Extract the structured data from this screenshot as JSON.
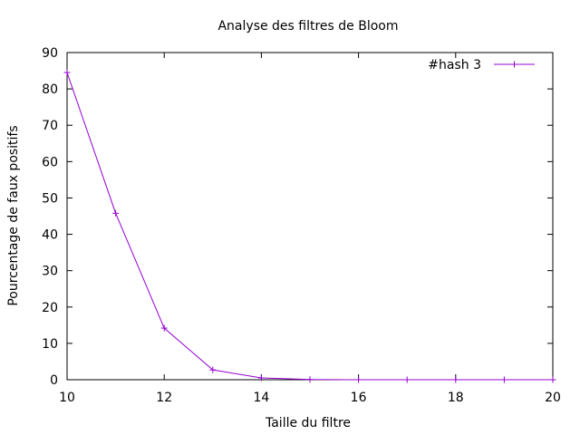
{
  "chart_data": {
    "type": "line",
    "title": "Analyse des filtres de Bloom",
    "xlabel": "Taille du filtre",
    "ylabel": "Pourcentage de faux positifs",
    "xlim": [
      10,
      20
    ],
    "ylim": [
      0,
      90
    ],
    "xticks": [
      10,
      12,
      14,
      16,
      18,
      20
    ],
    "yticks": [
      0,
      10,
      20,
      30,
      40,
      50,
      60,
      70,
      80,
      90
    ],
    "grid": false,
    "legend_position": "top-right",
    "series": [
      {
        "name": "#hash 3",
        "color": "#9400d3",
        "marker": "plus",
        "x": [
          10,
          11,
          12,
          13,
          14,
          15,
          16,
          17,
          18,
          19,
          20
        ],
        "y": [
          84.5,
          45.8,
          14.2,
          2.7,
          0.5,
          0.05,
          0,
          0,
          0,
          0,
          0
        ]
      }
    ]
  }
}
